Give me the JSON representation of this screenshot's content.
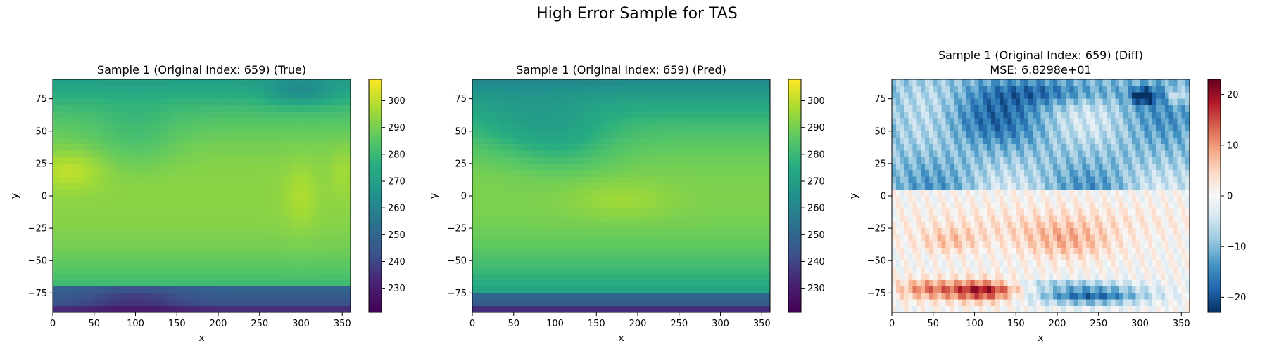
{
  "figure": {
    "suptitle": "High Error Sample for TAS"
  },
  "chart_data": [
    {
      "type": "heatmap",
      "title": "Sample 1 (Original Index: 659) (True)",
      "subtitle": "",
      "xlabel": "x",
      "ylabel": "y",
      "xlim": [
        0,
        360
      ],
      "ylim": [
        -90,
        90
      ],
      "x_ticks": [
        0,
        50,
        100,
        150,
        200,
        250,
        300,
        350
      ],
      "y_ticks": [
        -75,
        -50,
        -25,
        0,
        25,
        50,
        75
      ],
      "colormap": "viridis",
      "colorbar": {
        "range": [
          221,
          308
        ],
        "ticks": [
          230,
          240,
          250,
          260,
          270,
          280,
          290,
          300
        ]
      },
      "field": "true"
    },
    {
      "type": "heatmap",
      "title": "Sample 1 (Original Index: 659) (Pred)",
      "subtitle": "",
      "xlabel": "x",
      "ylabel": "y",
      "xlim": [
        0,
        360
      ],
      "ylim": [
        -90,
        90
      ],
      "x_ticks": [
        0,
        50,
        100,
        150,
        200,
        250,
        300,
        350
      ],
      "y_ticks": [
        -75,
        -50,
        -25,
        0,
        25,
        50,
        75
      ],
      "colormap": "viridis",
      "colorbar": {
        "range": [
          221,
          308
        ],
        "ticks": [
          230,
          240,
          250,
          260,
          270,
          280,
          290,
          300
        ]
      },
      "field": "pred"
    },
    {
      "type": "heatmap",
      "title": "Sample 1 (Original Index: 659) (Diff)",
      "subtitle": "MSE: 6.8298e+01",
      "xlabel": "x",
      "ylabel": "y",
      "xlim": [
        0,
        360
      ],
      "ylim": [
        -90,
        90
      ],
      "x_ticks": [
        0,
        50,
        100,
        150,
        200,
        250,
        300,
        350
      ],
      "y_ticks": [
        -75,
        -50,
        -25,
        0,
        25,
        50,
        75
      ],
      "colormap": "RdBu_r",
      "colorbar": {
        "range": [
          -23,
          23
        ],
        "ticks": [
          -20,
          -10,
          0,
          10,
          20
        ]
      },
      "field": "diff"
    }
  ]
}
